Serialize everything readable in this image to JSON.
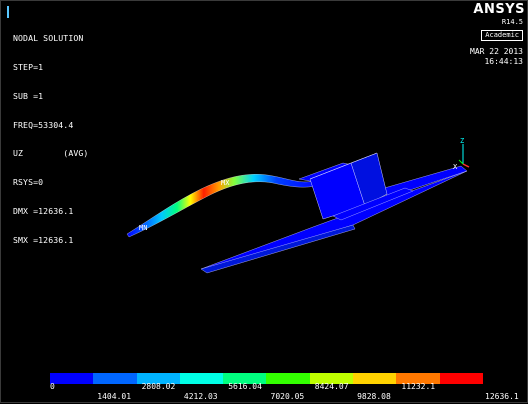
{
  "result_panel": {
    "title": "NODAL SOLUTION",
    "lines": [
      "STEP=1",
      "SUB =1",
      "FREQ=53304.4",
      "UZ        (AVG)",
      "RSYS=0",
      "DMX =12636.1",
      "SMX =12636.1"
    ]
  },
  "branding": {
    "logo": "ANSYS",
    "version": "R14.5",
    "edition": "Academic"
  },
  "timestamp": {
    "date": "MAR 22 2013",
    "time": "16:44:13"
  },
  "model_labels": {
    "min_marker": "MN",
    "max_marker": "MX",
    "axis_z": "Z",
    "axis_x": "X"
  },
  "legend": {
    "colors": [
      "#0000ff",
      "#0066ff",
      "#00b4ff",
      "#00ffe6",
      "#00ff80",
      "#33ff00",
      "#bfff00",
      "#ffd200",
      "#ff7800",
      "#ff0000"
    ],
    "top_values": [
      "0",
      "2808.02",
      "5616.04",
      "8424.07",
      "11232.1"
    ],
    "bottom_values": [
      "1404.01",
      "4212.03",
      "7020.05",
      "9828.08",
      "12636.1"
    ]
  }
}
